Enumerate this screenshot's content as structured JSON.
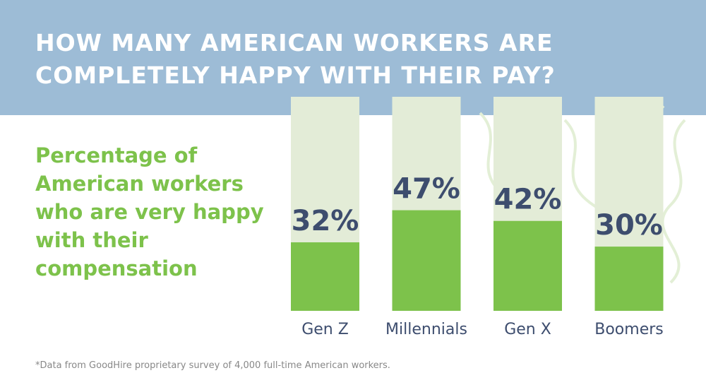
{
  "chart_data": {
    "type": "bar",
    "title": "HOW MANY AMERICAN WORKERS ARE COMPLETELY HAPPY WITH THEIR PAY?",
    "subtitle": "Percentage of American workers who are very happy with their compensation",
    "categories": [
      "Gen Z",
      "Millennials",
      "Gen X",
      "Boomers"
    ],
    "values": [
      32,
      47,
      42,
      30
    ],
    "value_labels": [
      "32%",
      "47%",
      "42%",
      "30%"
    ],
    "color": "#7dc24b",
    "ylim": [
      0,
      100
    ],
    "footnote": "*Data from GoodHire proprietary survey of 4,000 full-time American workers."
  }
}
